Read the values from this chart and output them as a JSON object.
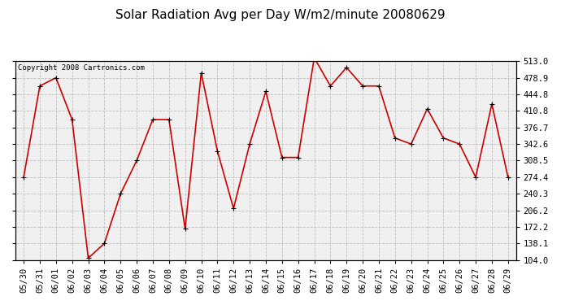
{
  "title": "Solar Radiation Avg per Day W/m2/minute 20080629",
  "copyright": "Copyright 2008 Cartronics.com",
  "labels": [
    "05/30",
    "05/31",
    "06/01",
    "06/02",
    "06/03",
    "06/04",
    "06/05",
    "06/06",
    "06/07",
    "06/08",
    "06/09",
    "06/10",
    "06/11",
    "06/12",
    "06/13",
    "06/14",
    "06/15",
    "06/16",
    "06/17",
    "06/18",
    "06/19",
    "06/20",
    "06/21",
    "06/22",
    "06/23",
    "06/24",
    "06/25",
    "06/26",
    "06/27",
    "06/28",
    "06/29"
  ],
  "values": [
    274.4,
    462.0,
    479.0,
    393.0,
    108.0,
    138.1,
    240.3,
    308.5,
    393.0,
    393.0,
    168.0,
    489.0,
    328.5,
    210.0,
    342.6,
    451.0,
    315.0,
    315.0,
    520.0,
    462.0,
    500.0,
    462.0,
    462.0,
    355.0,
    342.6,
    415.0,
    355.0,
    342.6,
    274.4,
    425.0,
    274.4
  ],
  "ylim_min": 104.0,
  "ylim_max": 513.0,
  "yticks": [
    104.0,
    138.1,
    172.2,
    206.2,
    240.3,
    274.4,
    308.5,
    342.6,
    376.7,
    410.8,
    444.8,
    478.9,
    513.0
  ],
  "ytick_labels": [
    "104.0",
    "138.1",
    "172.2",
    "206.2",
    "240.3",
    "274.4",
    "308.5",
    "342.6",
    "376.7",
    "410.8",
    "444.8",
    "478.9",
    "513.0"
  ],
  "line_color": "#cc0000",
  "marker_color": "#cc0000",
  "bg_color": "#ffffff",
  "plot_bg_color": "#f0f0f0",
  "grid_color": "#c0c0c0",
  "title_fontsize": 11,
  "copyright_fontsize": 6.5,
  "tick_fontsize": 7.5
}
